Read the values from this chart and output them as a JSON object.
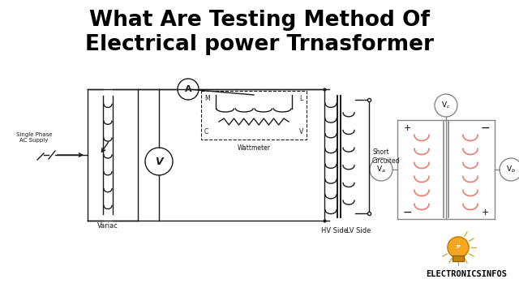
{
  "title_line1": "What Are Testing Method Of",
  "title_line2": "Electrical power Trnasformer",
  "title_fontsize": 19,
  "title_fontweight": "bold",
  "bg_color": "#ffffff",
  "text_color": "#000000",
  "brand_text": "ELECTRONICSINFOS",
  "circuit_color": "#1a1a1a",
  "pink_color": "#E8847A",
  "gray_color": "#888888",
  "light_gray": "#aaaaaa"
}
